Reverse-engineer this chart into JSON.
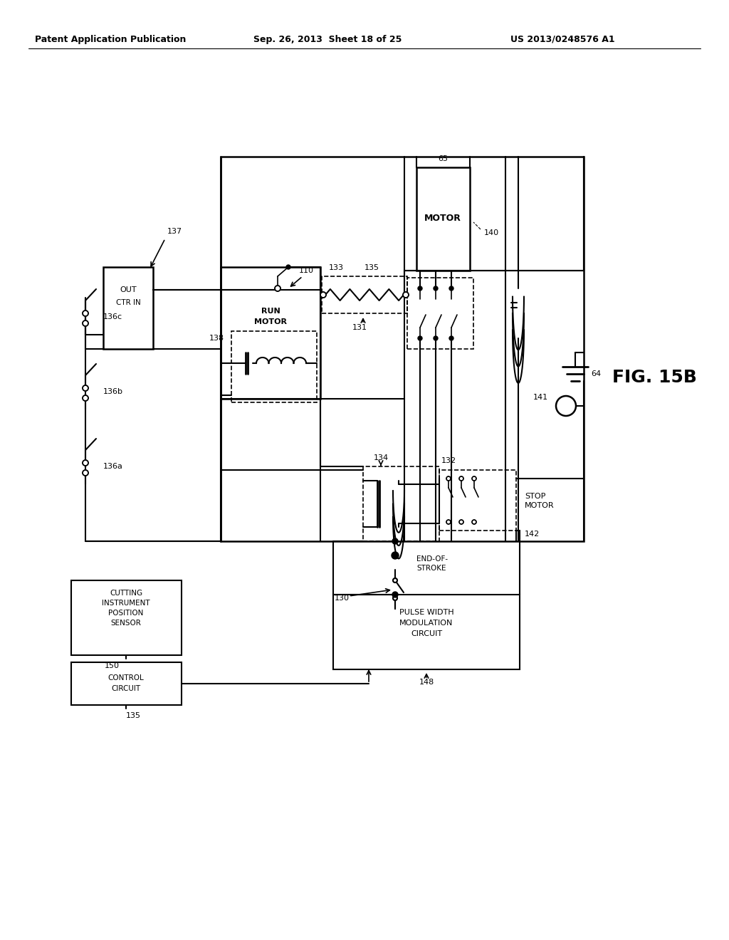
{
  "header_left": "Patent Application Publication",
  "header_center": "Sep. 26, 2013  Sheet 18 of 25",
  "header_right": "US 2013/0248576 A1",
  "fig_label": "FIG. 15B",
  "background_color": "#ffffff"
}
